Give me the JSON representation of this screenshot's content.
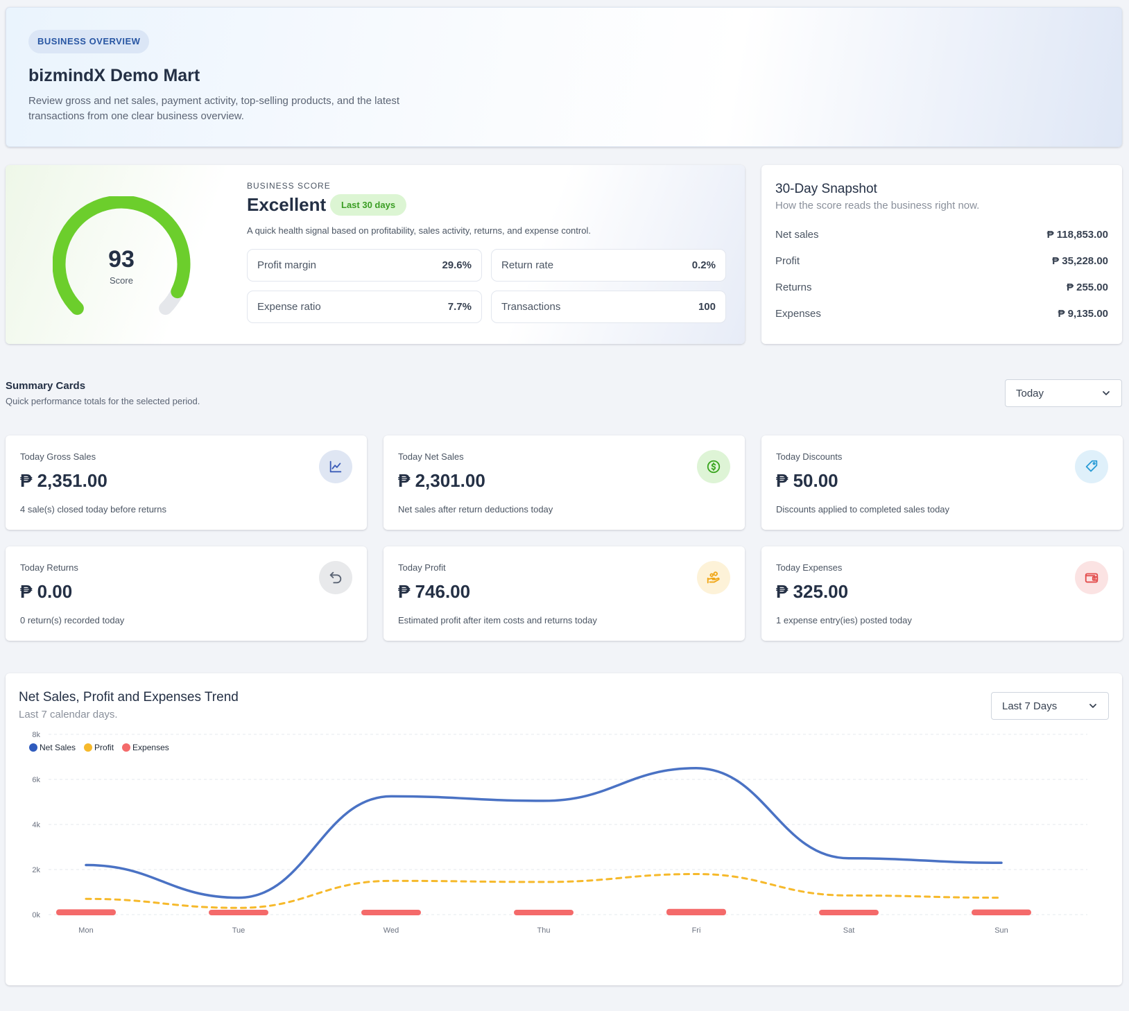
{
  "hero": {
    "pill": "BUSINESS OVERVIEW",
    "title": "bizmindX Demo Mart",
    "description": "Review gross and net sales, payment activity, top-selling products, and the latest transactions from one clear business overview."
  },
  "score": {
    "value": "93",
    "value_label": "Score",
    "score_number": 93,
    "eyebrow": "BUSINESS SCORE",
    "grade": "Excellent",
    "period_badge": "Last 30 days",
    "description": "A quick health signal based on profitability, sales activity, returns, and expense control.",
    "accent": "#6cce2c",
    "metrics": [
      {
        "label": "Profit margin",
        "value": "29.6%"
      },
      {
        "label": "Return rate",
        "value": "0.2%"
      },
      {
        "label": "Expense ratio",
        "value": "7.7%"
      },
      {
        "label": "Transactions",
        "value": "100"
      }
    ]
  },
  "snapshot": {
    "title": "30-Day Snapshot",
    "subtitle": "How the score reads the business right now.",
    "rows": [
      {
        "label": "Net sales",
        "value": "₱ 118,853.00"
      },
      {
        "label": "Profit",
        "value": "₱ 35,228.00"
      },
      {
        "label": "Returns",
        "value": "₱ 255.00"
      },
      {
        "label": "Expenses",
        "value": "₱ 9,135.00"
      }
    ]
  },
  "summary": {
    "title": "Summary Cards",
    "subtitle": "Quick performance totals for the selected period.",
    "period_select": "Today",
    "cards": [
      {
        "label": "Today Gross Sales",
        "value": "₱ 2,351.00",
        "note": "4 sale(s) closed today before returns",
        "icon": "chart-line-icon",
        "icon_color": "#3b5cb8",
        "icon_bg": "#dfe6f3"
      },
      {
        "label": "Today Net Sales",
        "value": "₱ 2,301.00",
        "note": "Net sales after return deductions today",
        "icon": "dollar-coin-icon",
        "icon_color": "#3aa51f",
        "icon_bg": "#def4d6"
      },
      {
        "label": "Today Discounts",
        "value": "₱ 50.00",
        "note": "Discounts applied to completed sales today",
        "icon": "tag-icon",
        "icon_color": "#2a9cd6",
        "icon_bg": "#dff0fa"
      },
      {
        "label": "Today Returns",
        "value": "₱ 0.00",
        "note": "0 return(s) recorded today",
        "icon": "undo-icon",
        "icon_color": "#5b6474",
        "icon_bg": "#e8e9eb"
      },
      {
        "label": "Today Profit",
        "value": "₱ 746.00",
        "note": "Estimated profit after item costs and returns today",
        "icon": "hand-coins-icon",
        "icon_color": "#f0a514",
        "icon_bg": "#fdf2d8"
      },
      {
        "label": "Today Expenses",
        "value": "₱ 325.00",
        "note": "1 expense entry(ies) posted today",
        "icon": "wallet-icon",
        "icon_color": "#e24b4b",
        "icon_bg": "#fbe3e3"
      }
    ]
  },
  "trend": {
    "title": "Net Sales, Profit and Expenses Trend",
    "subtitle": "Last 7 calendar days.",
    "range_select": "Last 7 Days"
  },
  "chart_data": {
    "type": "line",
    "x": [
      "Mon",
      "Tue",
      "Wed",
      "Thu",
      "Fri",
      "Sat",
      "Sun"
    ],
    "ylim": [
      0,
      8000
    ],
    "yticks": [
      0,
      2000,
      4000,
      6000,
      8000
    ],
    "ytick_labels": [
      "0k",
      "2k",
      "4k",
      "6k",
      "8k"
    ],
    "grid": true,
    "legend_position": "top-left",
    "series": [
      {
        "name": "Net Sales",
        "type": "line",
        "color": "#4a72c4",
        "values": [
          2200,
          750,
          5250,
          5050,
          6500,
          2500,
          2300
        ]
      },
      {
        "name": "Profit",
        "type": "dashed-line",
        "color": "#f6b92b",
        "values": [
          700,
          300,
          1500,
          1450,
          1800,
          850,
          750
        ]
      },
      {
        "name": "Expenses",
        "type": "bar",
        "color": "#f46a6a",
        "values": [
          200,
          150,
          150,
          150,
          250,
          150,
          180
        ]
      }
    ]
  }
}
